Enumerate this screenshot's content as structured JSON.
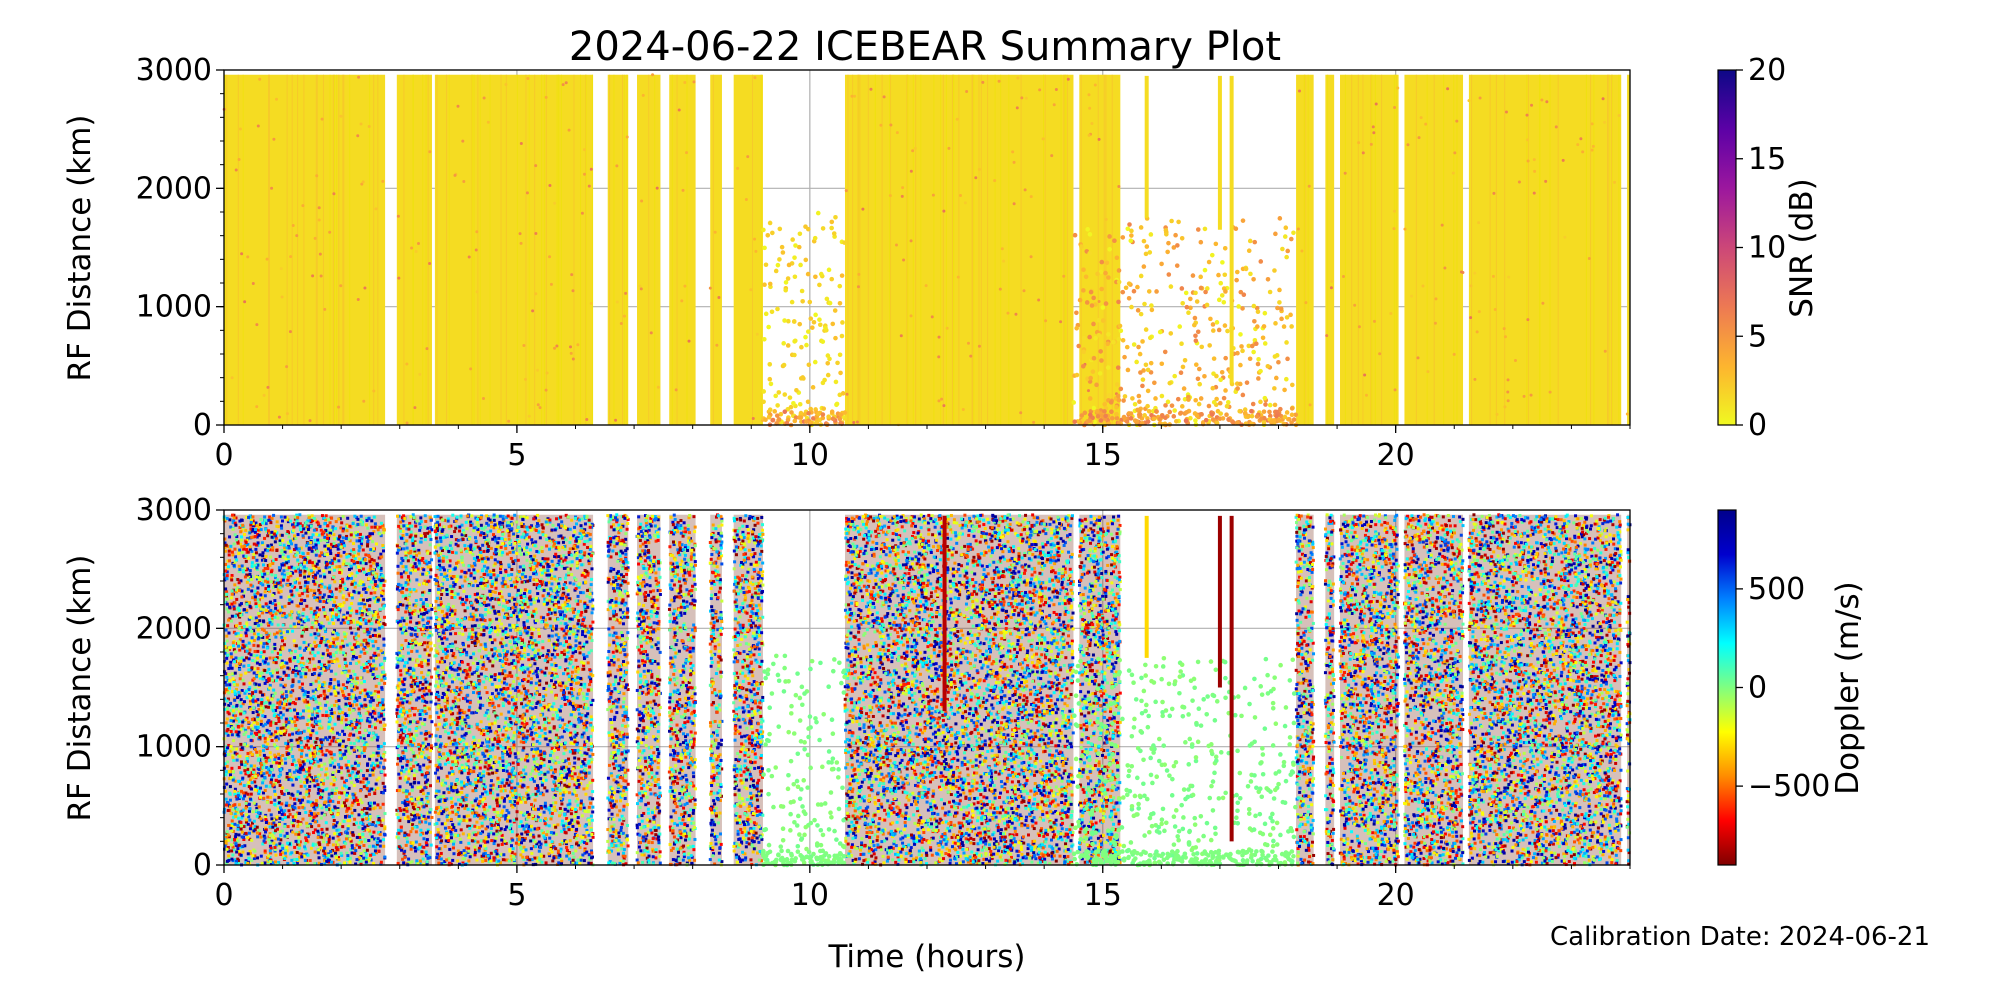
{
  "title": "2024-06-22 ICEBEAR Summary Plot",
  "footer": "Calibration Date: 2024-06-21",
  "chart_data": [
    {
      "type": "scatter",
      "panel": "snr",
      "ylabel": "RF Distance (km)",
      "xlim": [
        0,
        24
      ],
      "ylim": [
        0,
        3000
      ],
      "x_ticks": [
        "0",
        "5",
        "10",
        "15",
        "20"
      ],
      "y_ticks": [
        "0",
        "1000",
        "2000",
        "3000"
      ],
      "grid": true,
      "colorbar": {
        "label": "SNR (dB)",
        "range": [
          0,
          20
        ],
        "ticks": [
          "0",
          "5",
          "10",
          "15",
          "20"
        ],
        "colormap": "plasma_r",
        "colors": [
          "#f0f921",
          "#fdb42f",
          "#ed7953",
          "#cc4778",
          "#9c179e",
          "#5c01a6",
          "#0d0887"
        ]
      },
      "dominant_value": 0,
      "active_hours": [
        [
          0,
          2.75
        ],
        [
          2.95,
          3.55
        ],
        [
          3.6,
          6.3
        ],
        [
          6.55,
          6.9
        ],
        [
          7.05,
          7.45
        ],
        [
          7.6,
          8.05
        ],
        [
          8.3,
          8.5
        ],
        [
          8.7,
          9.2
        ],
        [
          10.6,
          14.5
        ],
        [
          14.6,
          15.3
        ],
        [
          18.3,
          18.6
        ],
        [
          18.8,
          18.95
        ],
        [
          19.05,
          20.05
        ],
        [
          20.15,
          21.15
        ],
        [
          21.25,
          23.85
        ],
        [
          23.95,
          24
        ]
      ],
      "sparse_regions": [
        {
          "x": [
            9.2,
            10.6
          ],
          "y": [
            0,
            1800
          ],
          "value_range": [
            0,
            3
          ]
        },
        {
          "x": [
            14.5,
            18.3
          ],
          "y": [
            0,
            1750
          ],
          "value_range": [
            0,
            6
          ]
        }
      ],
      "streaks": [
        {
          "x": 15.75,
          "y": [
            1750,
            2950
          ]
        },
        {
          "x": 17.0,
          "y": [
            1650,
            2950
          ]
        },
        {
          "x": 17.2,
          "y": [
            350,
            2950
          ]
        }
      ]
    },
    {
      "type": "scatter",
      "panel": "doppler",
      "xlabel": "Time (hours)",
      "ylabel": "RF Distance (km)",
      "xlim": [
        0,
        24
      ],
      "ylim": [
        0,
        3000
      ],
      "x_ticks": [
        "0",
        "5",
        "10",
        "15",
        "20"
      ],
      "y_ticks": [
        "0",
        "1000",
        "2000",
        "3000"
      ],
      "grid": true,
      "colorbar": {
        "label": "Doppler (m/s)",
        "range": [
          -900,
          900
        ],
        "ticks": [
          "−500",
          "0",
          "500"
        ],
        "tick_values": [
          -500,
          0,
          500
        ],
        "colormap": "jet_r",
        "colors": [
          "#800000",
          "#ff0000",
          "#ff8c00",
          "#ffff00",
          "#80ff80",
          "#00ffff",
          "#0080ff",
          "#0000cd",
          "#00008b"
        ]
      },
      "sparse_value": 0,
      "active_hours": [
        [
          0,
          2.75
        ],
        [
          2.95,
          3.55
        ],
        [
          3.6,
          6.3
        ],
        [
          6.55,
          6.9
        ],
        [
          7.05,
          7.45
        ],
        [
          7.6,
          8.05
        ],
        [
          8.3,
          8.5
        ],
        [
          8.7,
          9.2
        ],
        [
          10.6,
          14.5
        ],
        [
          14.6,
          15.3
        ],
        [
          18.3,
          18.6
        ],
        [
          18.8,
          18.95
        ],
        [
          19.05,
          20.05
        ],
        [
          20.15,
          21.15
        ],
        [
          21.25,
          23.85
        ],
        [
          23.95,
          24
        ]
      ],
      "sparse_regions": [
        {
          "x": [
            9.2,
            10.6
          ],
          "y": [
            0,
            1800
          ],
          "value": 0
        },
        {
          "x": [
            14.5,
            18.3
          ],
          "y": [
            0,
            1750
          ],
          "value": 0
        }
      ],
      "streaks": [
        {
          "x": 12.3,
          "y": [
            1300,
            2950
          ],
          "value": -800
        },
        {
          "x": 15.75,
          "y": [
            1750,
            2950
          ],
          "value": -300
        },
        {
          "x": 17.0,
          "y": [
            1500,
            2950
          ],
          "value": -850
        },
        {
          "x": 17.2,
          "y": [
            200,
            2950
          ],
          "value": -850
        }
      ]
    }
  ]
}
